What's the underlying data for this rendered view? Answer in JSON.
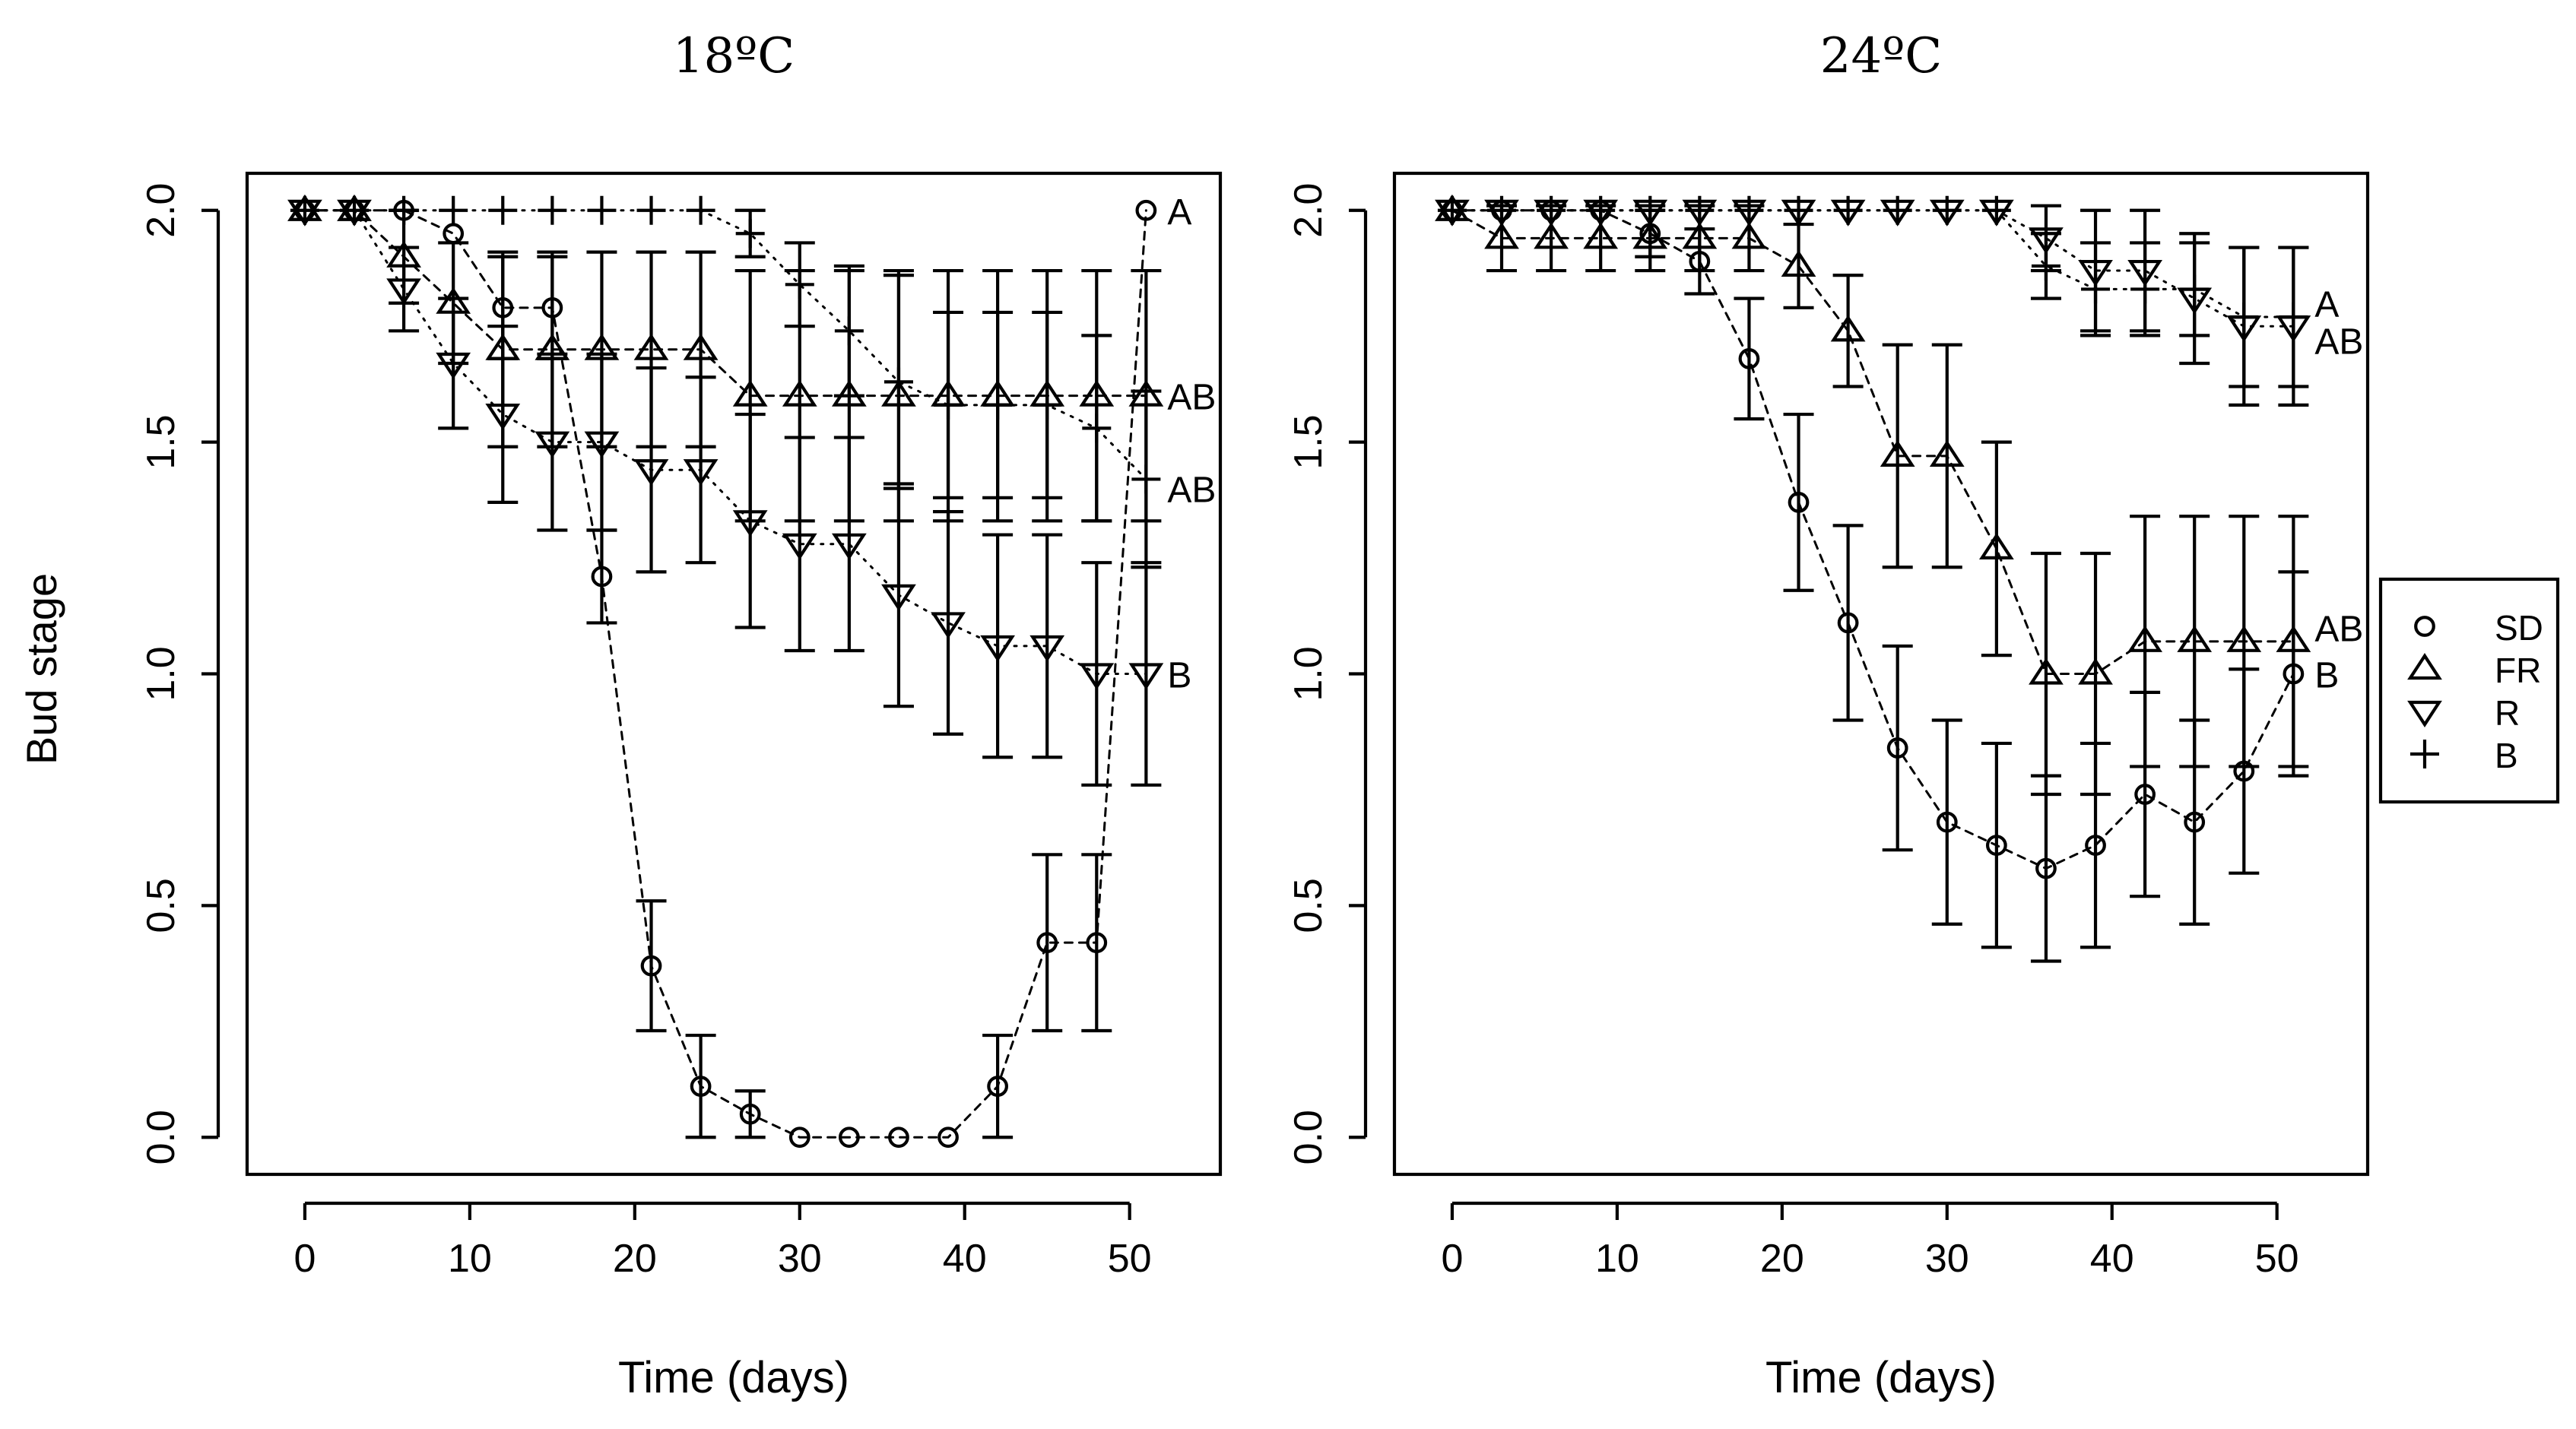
{
  "chart_data": [
    {
      "type": "line",
      "title": "18ºC",
      "xlabel": "Time (days)",
      "ylabel": "Bud stage",
      "xlim": [
        -3.5,
        55.5
      ],
      "ylim": [
        -0.08,
        2.08
      ],
      "xticks": [
        "0",
        "10",
        "20",
        "30",
        "40",
        "50"
      ],
      "yticks": [
        "0.0",
        "0.5",
        "1.0",
        "1.5",
        "2.0"
      ],
      "series": [
        {
          "name": "SD",
          "marker": "circle",
          "line": "dashed",
          "x": [
            0,
            3,
            6,
            9,
            12,
            15,
            18,
            21,
            24,
            27,
            30,
            33,
            36,
            39,
            42,
            45,
            48,
            51
          ],
          "values": [
            2.0,
            2.0,
            2.0,
            1.95,
            1.79,
            1.79,
            1.21,
            0.37,
            0.11,
            0.05,
            0.0,
            0.0,
            0.0,
            0.0,
            0.11,
            0.42,
            0.42,
            2.0
          ],
          "err": [
            0,
            0,
            0,
            0,
            0.11,
            0.11,
            0.1,
            0.14,
            0.11,
            0.05,
            0,
            0,
            0,
            0,
            0.11,
            0.19,
            0.19,
            0
          ]
        },
        {
          "name": "FR",
          "marker": "triangle-up",
          "line": "dashed",
          "x": [
            0,
            3,
            6,
            9,
            12,
            15,
            18,
            21,
            24,
            27,
            30,
            33,
            36,
            39,
            42,
            45,
            48,
            51
          ],
          "values": [
            2.0,
            2.0,
            1.9,
            1.8,
            1.7,
            1.7,
            1.7,
            1.7,
            1.7,
            1.6,
            1.6,
            1.6,
            1.6,
            1.6,
            1.6,
            1.6,
            1.6,
            1.6
          ],
          "err": [
            0,
            0,
            0.1,
            0.13,
            0.21,
            0.21,
            0.21,
            0.21,
            0.21,
            0.27,
            0.27,
            0.27,
            0.27,
            0.27,
            0.27,
            0.27,
            0.27,
            0.27
          ]
        },
        {
          "name": "R",
          "marker": "triangle-down",
          "line": "dotted",
          "x": [
            0,
            3,
            6,
            9,
            12,
            15,
            18,
            21,
            24,
            27,
            30,
            33,
            36,
            39,
            42,
            45,
            48,
            51
          ],
          "values": [
            2.0,
            2.0,
            1.83,
            1.67,
            1.56,
            1.5,
            1.5,
            1.44,
            1.44,
            1.33,
            1.28,
            1.28,
            1.17,
            1.11,
            1.06,
            1.06,
            1.0,
            1.0
          ],
          "err": [
            0,
            0,
            0.09,
            0.14,
            0.19,
            0.19,
            0.19,
            0.22,
            0.2,
            0.23,
            0.23,
            0.23,
            0.24,
            0.24,
            0.24,
            0.24,
            0.24,
            0.24
          ]
        },
        {
          "name": "B",
          "marker": "plus",
          "line": "dotted",
          "x": [
            0,
            3,
            6,
            9,
            12,
            15,
            18,
            21,
            24,
            27,
            30,
            33,
            36,
            39,
            42,
            45,
            48,
            51
          ],
          "values": [
            2.0,
            2.0,
            2.0,
            2.0,
            2.0,
            2.0,
            2.0,
            2.0,
            2.0,
            1.95,
            1.84,
            1.74,
            1.63,
            1.58,
            1.58,
            1.58,
            1.53,
            1.42
          ],
          "err": [
            0,
            0,
            0,
            0,
            0,
            0,
            0,
            0,
            0,
            0.05,
            0.09,
            0.14,
            0.23,
            0.2,
            0.2,
            0.2,
            0.2,
            0.19
          ]
        }
      ],
      "annotations": [
        {
          "text": "A",
          "x": 51,
          "y": 2.0
        },
        {
          "text": "AB",
          "x": 51,
          "y": 1.6
        },
        {
          "text": "AB",
          "x": 51,
          "y": 1.4
        },
        {
          "text": "B",
          "x": 51,
          "y": 1.0
        }
      ]
    },
    {
      "type": "line",
      "title": "24ºC",
      "xlabel": "Time (days)",
      "ylabel": "",
      "xlim": [
        -3.5,
        55.5
      ],
      "ylim": [
        -0.08,
        2.08
      ],
      "xticks": [
        "0",
        "10",
        "20",
        "30",
        "40",
        "50"
      ],
      "yticks": [
        "0.0",
        "0.5",
        "1.0",
        "1.5",
        "2.0"
      ],
      "series": [
        {
          "name": "SD",
          "marker": "circle",
          "line": "dashed",
          "x": [
            0,
            3,
            6,
            9,
            12,
            15,
            18,
            21,
            24,
            27,
            30,
            33,
            36,
            39,
            42,
            45,
            48,
            51
          ],
          "values": [
            2.0,
            2.0,
            2.0,
            2.0,
            1.95,
            1.89,
            1.68,
            1.37,
            1.11,
            0.84,
            0.68,
            0.63,
            0.58,
            0.63,
            0.74,
            0.68,
            0.79,
            1.0
          ],
          "err": [
            0,
            0,
            0,
            0,
            0.05,
            0.07,
            0.13,
            0.19,
            0.21,
            0.22,
            0.22,
            0.22,
            0.2,
            0.22,
            0.22,
            0.22,
            0.22,
            0.22
          ]
        },
        {
          "name": "FR",
          "marker": "triangle-up",
          "line": "dashed",
          "x": [
            0,
            3,
            6,
            9,
            12,
            15,
            18,
            21,
            24,
            27,
            30,
            33,
            36,
            39,
            42,
            45,
            48,
            51
          ],
          "values": [
            2.0,
            1.94,
            1.94,
            1.94,
            1.94,
            1.94,
            1.94,
            1.88,
            1.74,
            1.47,
            1.47,
            1.27,
            1.0,
            1.0,
            1.07,
            1.07,
            1.07,
            1.07
          ],
          "err": [
            0,
            0.07,
            0.07,
            0.07,
            0.07,
            0.07,
            0.07,
            0.09,
            0.12,
            0.24,
            0.24,
            0.23,
            0.26,
            0.26,
            0.27,
            0.27,
            0.27,
            0.27
          ]
        },
        {
          "name": "R",
          "marker": "triangle-down",
          "line": "dotted",
          "x": [
            0,
            3,
            6,
            9,
            12,
            15,
            18,
            21,
            24,
            27,
            30,
            33,
            36,
            39,
            42,
            45,
            48,
            51
          ],
          "values": [
            2.0,
            2.0,
            2.0,
            2.0,
            2.0,
            2.0,
            2.0,
            2.0,
            2.0,
            2.0,
            2.0,
            2.0,
            1.94,
            1.87,
            1.87,
            1.81,
            1.75,
            1.75
          ],
          "err": [
            0,
            0,
            0,
            0,
            0,
            0,
            0,
            0,
            0,
            0,
            0,
            0,
            0.07,
            0.13,
            0.13,
            0.14,
            0.17,
            0.17
          ]
        },
        {
          "name": "B",
          "marker": "plus",
          "line": "dotted",
          "x": [
            0,
            3,
            6,
            9,
            12,
            15,
            18,
            21,
            24,
            27,
            30,
            33,
            36,
            39,
            42,
            45,
            48,
            51
          ],
          "values": [
            2.0,
            2.0,
            2.0,
            2.0,
            2.0,
            2.0,
            2.0,
            2.0,
            2.0,
            2.0,
            2.0,
            2.0,
            1.88,
            1.83,
            1.83,
            1.83,
            1.77,
            1.77
          ],
          "err": [
            0,
            0,
            0,
            0,
            0,
            0,
            0,
            0,
            0,
            0,
            0,
            0,
            0.07,
            0.1,
            0.1,
            0.1,
            0.15,
            0.15
          ]
        }
      ],
      "annotations": [
        {
          "text": "A",
          "x": 51,
          "y": 1.8
        },
        {
          "text": "AB",
          "x": 51,
          "y": 1.72
        },
        {
          "text": "AB",
          "x": 51,
          "y": 1.1
        },
        {
          "text": "B",
          "x": 51,
          "y": 1.0
        }
      ]
    }
  ],
  "legend": {
    "placement": "right",
    "entries": [
      {
        "label": "SD",
        "marker": "circle"
      },
      {
        "label": "FR",
        "marker": "triangle-up"
      },
      {
        "label": "R",
        "marker": "triangle-down"
      },
      {
        "label": "B",
        "marker": "plus"
      }
    ]
  }
}
